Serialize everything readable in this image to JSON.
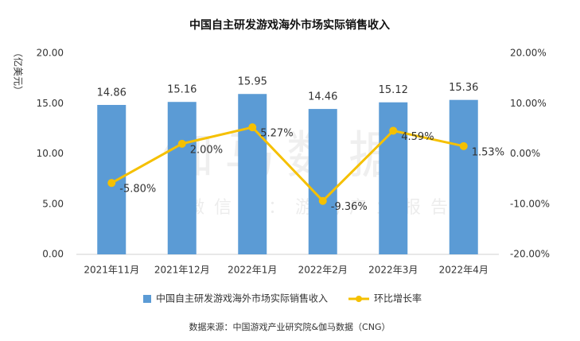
{
  "chart_data": {
    "type": "bar",
    "title": "中国自主研发游戏海外市场实际销售收入",
    "y_label": "（亿美元）",
    "source": "数据来源：中国游戏产业研究院&伽马数据（CNG）",
    "watermark": [
      "伽马数据",
      "微信号：游戏产业报告"
    ],
    "categories": [
      "2021年11月",
      "2021年12月",
      "2022年1月",
      "2022年2月",
      "2022年3月",
      "2022年4月"
    ],
    "series": [
      {
        "name": "中国自主研发游戏海外市场实际销售收入",
        "type": "bar",
        "color": "#5b9bd5",
        "values": [
          14.86,
          15.16,
          15.95,
          14.46,
          15.12,
          15.36
        ]
      },
      {
        "name": "环比增长率",
        "type": "line",
        "axis": "y2",
        "color": "#f5c000",
        "values": [
          -5.8,
          2.0,
          5.27,
          -9.36,
          4.59,
          1.53
        ],
        "value_labels": [
          "-5.80%",
          "2.00%",
          "5.27%",
          "-9.36%",
          "4.59%",
          "1.53%"
        ]
      }
    ],
    "ylim": [
      0,
      20
    ],
    "yticks": [
      {
        "value": 0,
        "label": "0.00"
      },
      {
        "value": 5,
        "label": "5.00"
      },
      {
        "value": 10,
        "label": "10.00"
      },
      {
        "value": 15,
        "label": "15.00"
      },
      {
        "value": 20,
        "label": "20.00"
      }
    ],
    "y2lim": [
      -20,
      20
    ],
    "y2ticks": [
      {
        "value": -20,
        "label": "-20.00%"
      },
      {
        "value": -10,
        "label": "-10.00%"
      },
      {
        "value": 0,
        "label": "0.00%"
      },
      {
        "value": 10,
        "label": "10.00%"
      },
      {
        "value": 20,
        "label": "20.00%"
      }
    ],
    "legend": "bottom"
  }
}
